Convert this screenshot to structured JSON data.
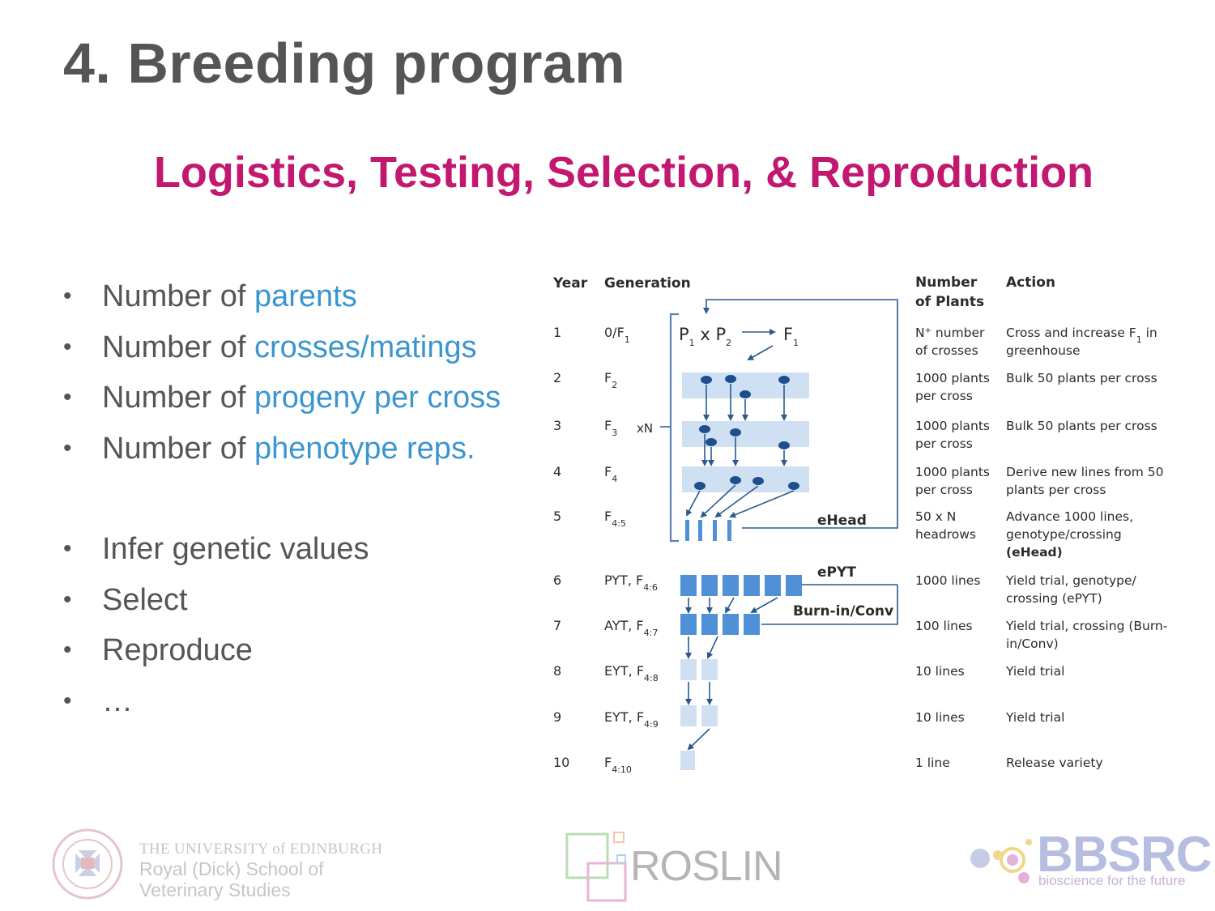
{
  "slide": {
    "title": "4. Breeding program",
    "subtitle": "Logistics, Testing, Selection, & Reproduction"
  },
  "bullets_top": [
    {
      "prefix": "Number of ",
      "highlight": "parents"
    },
    {
      "prefix": "Number of ",
      "highlight": "crosses/matings"
    },
    {
      "prefix": "Number of ",
      "highlight": "progeny per cross"
    },
    {
      "prefix": "Number of ",
      "highlight": "phenotype reps."
    }
  ],
  "bullets_bottom": [
    {
      "text": "Infer genetic values",
      "color": "#555555"
    },
    {
      "text": "Select",
      "color": "#5aa514"
    },
    {
      "text": "Reproduce",
      "color": "#d55a1e"
    },
    {
      "text": "…",
      "color": "#555555"
    }
  ],
  "colors": {
    "title": "#555555",
    "subtitle": "#c2186f",
    "highlight": "#3a95d0",
    "select": "#5aa514",
    "reproduce": "#d55a1e",
    "plot_light": "#cfe0f3",
    "plot_mid": "#4f90d6",
    "plant_dark": "#1f4e8c"
  },
  "diagram": {
    "headers": {
      "year": "Year",
      "generation": "Generation",
      "plants_1": "Number",
      "plants_2": "of Plants",
      "action": "Action"
    },
    "rows": [
      {
        "year": "1",
        "gen": "0/F",
        "gen_sub": "1",
        "plants": [
          "N",
          "number",
          "of crosses"
        ],
        "plants_sup": "+",
        "action": [
          "Cross and increase F",
          "greenhouse"
        ],
        "action_sub": "1",
        "action_tail": " in"
      },
      {
        "year": "2",
        "gen": "F",
        "gen_sub": "2",
        "plants": [
          "1000 plants",
          "per cross"
        ],
        "action": [
          "Bulk 50 plants per cross"
        ]
      },
      {
        "year": "3",
        "gen": "F",
        "gen_sub": "3",
        "plants": [
          "1000 plants",
          "per cross"
        ],
        "action": [
          "Bulk 50 plants per cross"
        ]
      },
      {
        "year": "4",
        "gen": "F",
        "gen_sub": "4",
        "plants": [
          "1000 plants",
          "per cross"
        ],
        "action": [
          "Derive new lines from 50",
          "plants per cross"
        ]
      },
      {
        "year": "5",
        "gen": "F",
        "gen_sub": "4:5",
        "plants": [
          "50 x N",
          "headrows"
        ],
        "action": [
          "Advance 1000 lines,",
          "genotype/crossing",
          "(eHead)"
        ]
      },
      {
        "year": "6",
        "gen": "PYT, F",
        "gen_sub": "4:6",
        "plants": [
          "1000 lines"
        ],
        "action": [
          "Yield trial, genotype/",
          "crossing (ePYT)"
        ]
      },
      {
        "year": "7",
        "gen": "AYT, F",
        "gen_sub": "4:7",
        "plants": [
          "100 lines"
        ],
        "action": [
          "Yield trial, crossing (Burn-",
          "in/Conv)"
        ]
      },
      {
        "year": "8",
        "gen": "EYT, F",
        "gen_sub": "4:8",
        "plants": [
          "10 lines"
        ],
        "action": [
          "Yield trial"
        ]
      },
      {
        "year": "9",
        "gen": "EYT, F",
        "gen_sub": "4:9",
        "plants": [
          "10 lines"
        ],
        "action": [
          "Yield trial"
        ]
      },
      {
        "year": "10",
        "gen": "F",
        "gen_sub": "4:10",
        "plants": [
          "1 line"
        ],
        "action": [
          "Release variety"
        ]
      }
    ],
    "cross_label": {
      "p": "P",
      "p1_sub": "1",
      "x": "x",
      "p2_sub": "2",
      "f": "F",
      "f1_sub": "1"
    },
    "loop_label": "xN",
    "feedback_labels": {
      "ehead": "eHead",
      "epyt": "ePYT",
      "burn": "Burn-in/Conv"
    }
  },
  "footer": {
    "edinburgh": {
      "line1": "THE UNIVERSITY of EDINBURGH",
      "line2": "Royal (Dick) School of",
      "line3": "Veterinary Studies",
      "seal_icon": "university-seal-icon"
    },
    "roslin": {
      "text": "ROSLIN",
      "icon": "roslin-squares-icon"
    },
    "bbsrc": {
      "text": "BBSRC",
      "tagline": "bioscience for the future",
      "icon": "bbsrc-molecule-icon"
    }
  }
}
